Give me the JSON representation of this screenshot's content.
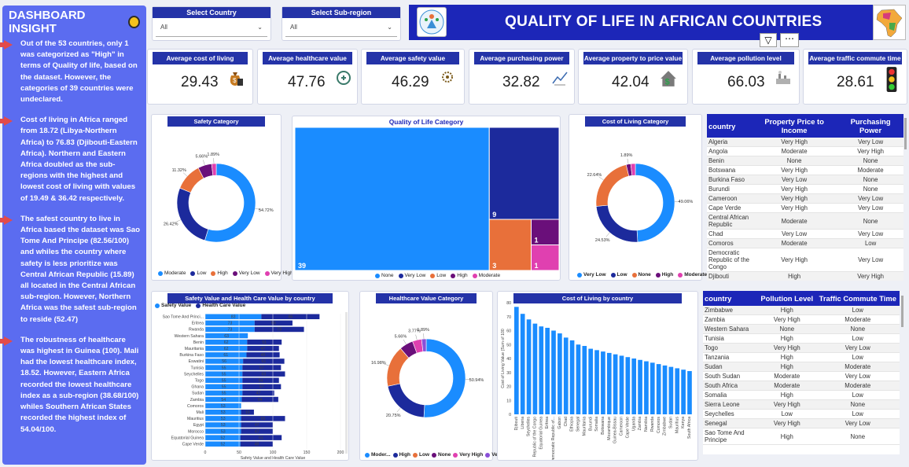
{
  "sidebar": {
    "title": "DASHBOARD INSIGHT",
    "paragraphs": [
      "Out of the 53 countries, only 1 was categorized as \"High\" in terms of Quality of life, based on the dataset. However, the categories of 39 countries were undeclared.",
      "Cost of living in Africa ranged from 18.72 (Libya-Northern Africa) to 76.83 (Djibouti-Eastern Africa). Northern and Eastern Africa doubled as the sub-regions with the highest and lowest cost of living with values of 19.49 & 36.42 respectively.",
      "The safest country to live in Africa based the dataset was Sao Tome And Principe (82.56/100)  and whiles the country where safety is less prioritize  was Central African Republic (15.89) all located in the Central African sub-region. However, Northern Africa was the safest sub-region to reside (52.47)",
      "The robustness of healthcare was highest in Guinea (100). Mali had the lowest healthcare index, 18.52.  However, Eastern Africa recorded the lowest healthcare index as a sub-region (38.68/100) whiles Southern African States recorded the highest index of 54.04/100."
    ]
  },
  "slicers": {
    "country": {
      "label": "Select Country",
      "value": "All"
    },
    "subregion": {
      "label": "Select Sub-region",
      "value": "All"
    }
  },
  "banner": {
    "title": "QUALITY OF LIFE IN AFRICAN COUNTRIES"
  },
  "kpis": [
    {
      "label": "Average cost of living",
      "value": "29.43",
      "icon": "money-bag-icon"
    },
    {
      "label": "Average healthcare value",
      "value": "47.76",
      "icon": "healthcare-logo-icon"
    },
    {
      "label": "Average safety value",
      "value": "46.29",
      "icon": "safety-logo-icon"
    },
    {
      "label": "Average purchasing power",
      "value": "32.82",
      "icon": "purchase-icon"
    },
    {
      "label": "Average property to price value",
      "value": "42.04",
      "icon": "house-dollar-icon"
    },
    {
      "label": "Average pollution level",
      "value": "66.03",
      "icon": "factory-icon"
    },
    {
      "label": "Average traffic commute time",
      "value": "28.61",
      "icon": "traffic-light-icon"
    }
  ],
  "chart_data": [
    {
      "type": "pie",
      "title": "Safety Category",
      "labels": [
        "Moderate",
        "Low",
        "High",
        "Very Low",
        "Very High"
      ],
      "values": [
        54.72,
        26.42,
        11.32,
        5.66,
        1.89
      ],
      "value_labels": [
        "54.72%",
        "26.42%",
        "11.32%",
        "5.66%",
        "1.89%"
      ],
      "colors": [
        "#1a8cff",
        "#1c2a9c",
        "#e8703a",
        "#6a0f7a",
        "#e040b0"
      ]
    },
    {
      "type": "heatmap",
      "title": "Quality of Life Category",
      "labels": [
        "None",
        "Very Low",
        "Low",
        "High",
        "Moderate"
      ],
      "values": [
        39,
        9,
        3,
        1,
        1
      ],
      "colors": [
        "#1a8cff",
        "#1c2a9c",
        "#e8703a",
        "#6a0f7a",
        "#e040b0"
      ]
    },
    {
      "type": "pie",
      "title": "Cost of Living Category",
      "labels": [
        "Very Low",
        "Low",
        "None",
        "High",
        "Moderate"
      ],
      "values": [
        49.06,
        24.53,
        22.64,
        1.89,
        1.89
      ],
      "value_labels": [
        "49.06%",
        "24.53%",
        "22.64%",
        "1.89%",
        ""
      ],
      "colors": [
        "#1a8cff",
        "#1c2a9c",
        "#e8703a",
        "#6a0f7a",
        "#e040b0"
      ]
    },
    {
      "type": "bar",
      "title": "Safety Value and Health Care Value by country",
      "series_names": [
        "Safety Value",
        "Health Care Value"
      ],
      "xlabel": "Safety Value and Health Care Value",
      "ticks": [
        "0",
        "50",
        "100",
        "150",
        "200"
      ],
      "xlim": [
        0,
        200
      ],
      "categories": [
        "Sao Tome And Princi...",
        "Eritrea",
        "Rwanda",
        "Western Sahara",
        "Benin",
        "Mauritania",
        "Burkina Faso",
        "Eswatini",
        "Tunisia",
        "Seychelles",
        "Togo",
        "Ghana",
        "Sudan",
        "Zambia",
        "Comoros",
        "Mali",
        "Mauritius",
        "Egypt",
        "Morocco",
        "Equatorial Guinea",
        "Cape Verde"
      ],
      "safety": [
        83,
        73,
        73,
        63,
        62,
        62,
        61,
        56,
        55,
        55,
        55,
        55,
        55,
        54,
        53,
        53,
        53,
        53,
        53,
        52,
        52
      ],
      "health": [
        86,
        56,
        73,
        null,
        51,
        47,
        49,
        61,
        57,
        63,
        54,
        57,
        47,
        54,
        null,
        19,
        65,
        47,
        47,
        61,
        48
      ]
    },
    {
      "type": "pie",
      "title": "Healthcare Value Category",
      "labels": [
        "Moder...",
        "High",
        "Low",
        "None",
        "Very High",
        "Very Low"
      ],
      "values": [
        50.94,
        20.75,
        16.98,
        5.66,
        3.77,
        1.89
      ],
      "value_labels": [
        "50.94%",
        "20.75%",
        "16.98%",
        "5.66%",
        "3.77%",
        "1.89%"
      ],
      "colors": [
        "#1a8cff",
        "#1c2a9c",
        "#e8703a",
        "#6a0f7a",
        "#e040b0",
        "#8a4fd8"
      ]
    },
    {
      "type": "bar",
      "title": "Cost of Living by country",
      "ylabel": "Cost of Living Value (Sum of 100",
      "ylim": [
        0,
        80
      ],
      "yticks": [
        "0",
        "10",
        "20",
        "30",
        "40",
        "50",
        "60",
        "70",
        "80"
      ],
      "categories": [
        "Djibouti",
        "Liberia",
        "Seychelles",
        "Republic of the Congo",
        "Equatorial Guinea",
        "Eritrea",
        "Democratic Republic of...",
        "Gabon",
        "Chad",
        "Ethiopia",
        "Senegal",
        "Mauritania",
        "Burundi",
        "Somalia",
        "Botswana",
        "Mozambique",
        "Guinea-Bissau",
        "Cameroon",
        "Cape Verde",
        "Uganda",
        "Zambia",
        "Namibia",
        "Rwanda",
        "Comoros",
        "Zimbabwe",
        "Sudan",
        "Mauritius",
        "Kenya",
        "South Africa"
      ],
      "values": [
        77,
        72,
        68,
        65,
        63,
        62,
        60,
        58,
        55,
        53,
        50,
        49,
        47,
        46,
        45,
        44,
        43,
        42,
        41,
        40,
        39,
        38,
        37,
        36,
        35,
        34,
        33,
        32,
        31
      ]
    }
  ],
  "treemap_legend": [
    "None",
    "Very Low",
    "Low",
    "High",
    "Moderate"
  ],
  "pie_legends": {
    "safety": [
      "Moderate",
      "Low",
      "High",
      "Very Low",
      "Very High"
    ],
    "cost": [
      "Very Low",
      "Low",
      "None",
      "High",
      "Moderate"
    ],
    "health": [
      "Moder...",
      "High",
      "Low",
      "None",
      "Very High",
      "Very Low"
    ]
  },
  "table1": {
    "headers": [
      "country",
      "Property Price to Income",
      "Purchasing Power"
    ],
    "rows": [
      [
        "Algeria",
        "Very High",
        "Very Low"
      ],
      [
        "Angola",
        "Moderate",
        "Very High"
      ],
      [
        "Benin",
        "None",
        "None"
      ],
      [
        "Botswana",
        "Very High",
        "Moderate"
      ],
      [
        "Burkina Faso",
        "Very Low",
        "None"
      ],
      [
        "Burundi",
        "Very High",
        "None"
      ],
      [
        "Cameroon",
        "Very High",
        "Very Low"
      ],
      [
        "Cape Verde",
        "Very High",
        "Very Low"
      ],
      [
        "Central African Republic",
        "Moderate",
        "None"
      ],
      [
        "Chad",
        "Very Low",
        "Very Low"
      ],
      [
        "Comoros",
        "Moderate",
        "Low"
      ],
      [
        "Democratic Republic of the Congo",
        "Very High",
        "Very Low"
      ],
      [
        "Djibouti",
        "High",
        "Very High"
      ]
    ]
  },
  "table2": {
    "headers": [
      "country",
      "Pollution Level",
      "Traffic Commute Time"
    ],
    "rows": [
      [
        "Zimbabwe",
        "High",
        "Low"
      ],
      [
        "Zambia",
        "Very High",
        "Moderate"
      ],
      [
        "Western Sahara",
        "None",
        "None"
      ],
      [
        "Tunisia",
        "High",
        "Low"
      ],
      [
        "Togo",
        "Very High",
        "Very Low"
      ],
      [
        "Tanzania",
        "High",
        "Low"
      ],
      [
        "Sudan",
        "High",
        "Moderate"
      ],
      [
        "South Sudan",
        "Moderate",
        "Very Low"
      ],
      [
        "South Africa",
        "Moderate",
        "Moderate"
      ],
      [
        "Somalia",
        "High",
        "Low"
      ],
      [
        "Sierra Leone",
        "Very High",
        "None"
      ],
      [
        "Seychelles",
        "Low",
        "Low"
      ],
      [
        "Senegal",
        "Very High",
        "Very Low"
      ],
      [
        "Sao Tome And Principe",
        "High",
        "None"
      ]
    ]
  }
}
